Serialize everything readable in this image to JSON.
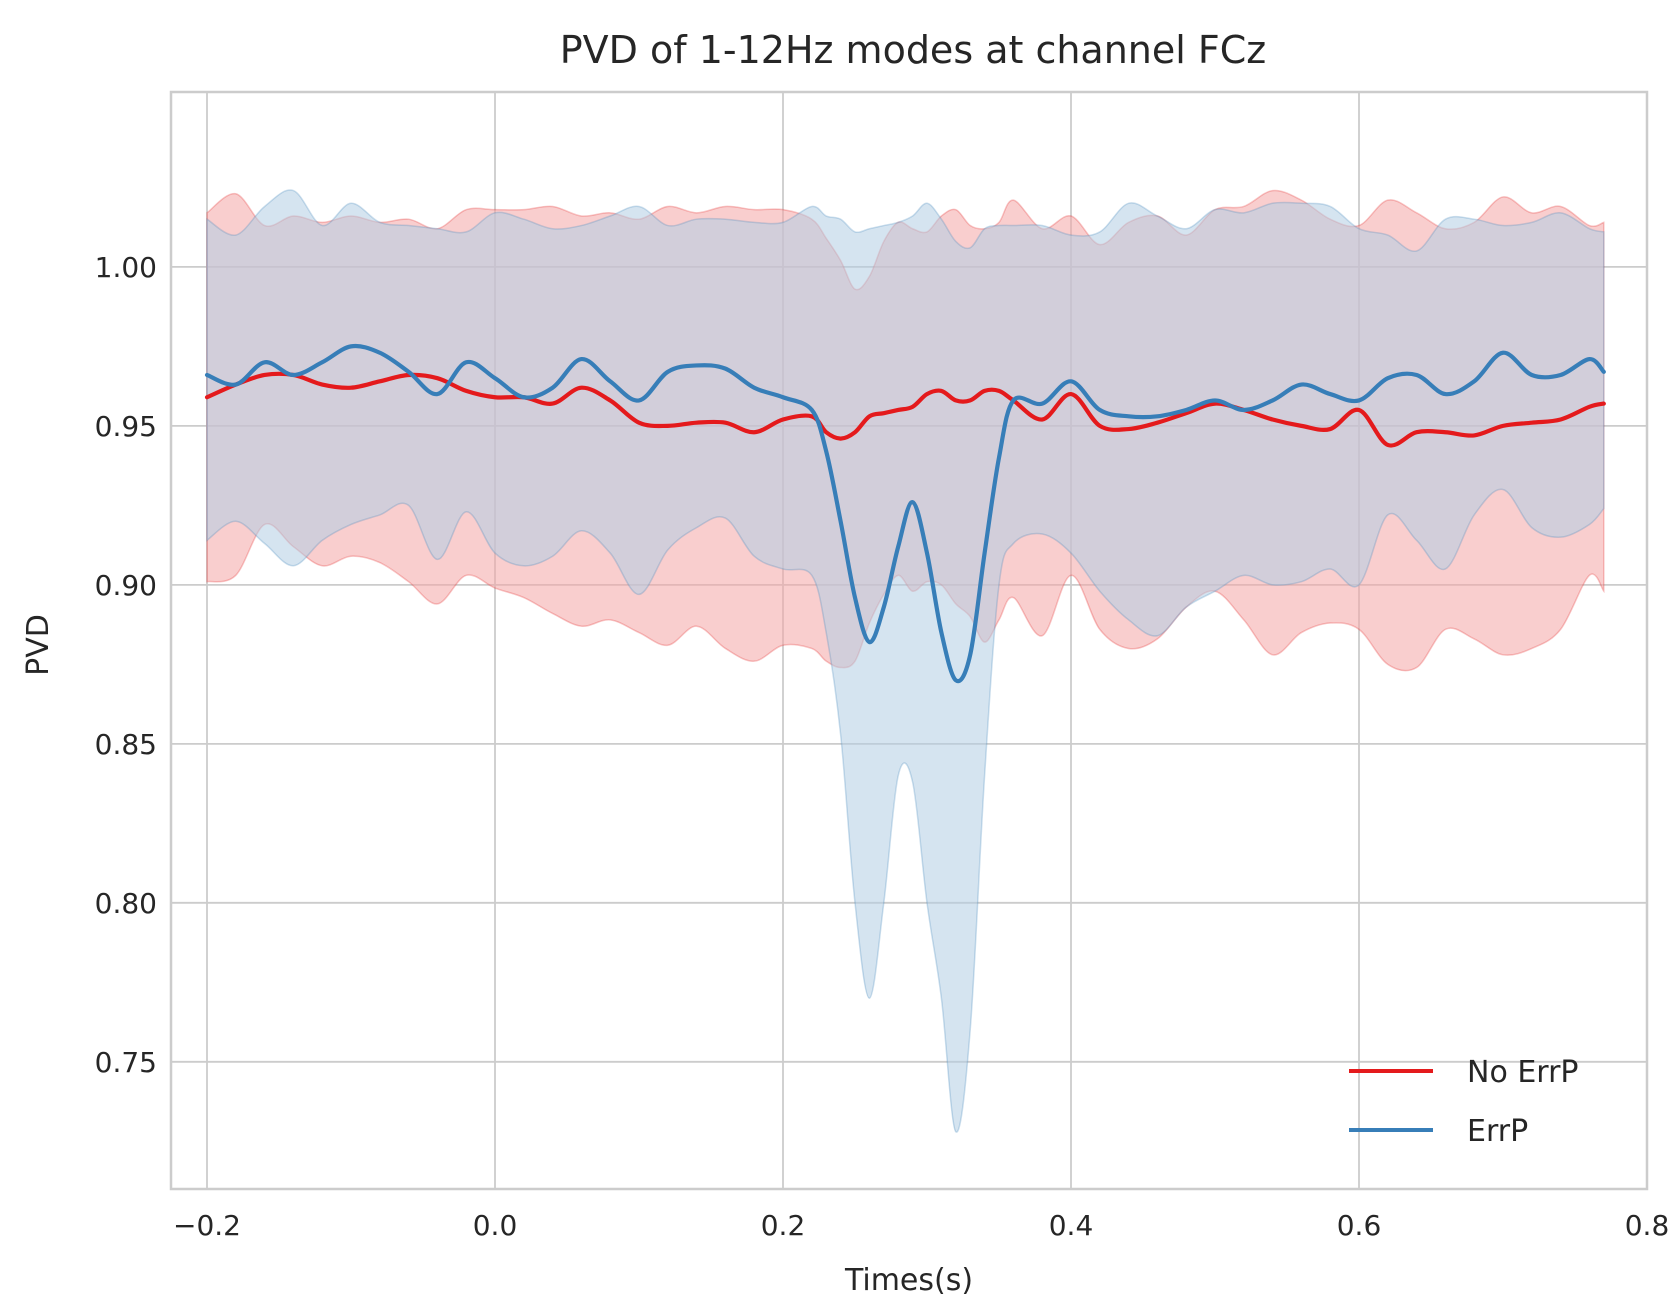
{
  "chart_data": {
    "type": "line",
    "title": "PVD of 1-12Hz modes at channel FCz",
    "xlabel": "Times(s)",
    "ylabel": "PVD",
    "xlim": [
      -0.225,
      0.8
    ],
    "ylim": [
      0.71,
      1.055
    ],
    "xticks": [
      -0.2,
      0.0,
      0.2,
      0.4,
      0.6,
      0.8
    ],
    "xtick_labels": [
      "−0.2",
      "0.0",
      "0.2",
      "0.4",
      "0.6",
      "0.8"
    ],
    "yticks": [
      0.75,
      0.8,
      0.85,
      0.9,
      0.95,
      1.0
    ],
    "ytick_labels": [
      "0.75",
      "0.80",
      "0.85",
      "0.90",
      "0.95",
      "1.00"
    ],
    "grid": true,
    "legend_position": "lower-right",
    "x": [
      -0.2,
      -0.18,
      -0.16,
      -0.14,
      -0.12,
      -0.1,
      -0.08,
      -0.06,
      -0.04,
      -0.02,
      0.0,
      0.02,
      0.04,
      0.06,
      0.08,
      0.1,
      0.12,
      0.14,
      0.16,
      0.18,
      0.2,
      0.22,
      0.23,
      0.24,
      0.25,
      0.26,
      0.27,
      0.28,
      0.29,
      0.3,
      0.31,
      0.32,
      0.33,
      0.34,
      0.35,
      0.36,
      0.38,
      0.4,
      0.42,
      0.44,
      0.46,
      0.48,
      0.5,
      0.52,
      0.54,
      0.56,
      0.58,
      0.6,
      0.62,
      0.64,
      0.66,
      0.68,
      0.7,
      0.72,
      0.74,
      0.76,
      0.77
    ],
    "series": [
      {
        "name": "No ErrP",
        "color": "#e41a1c",
        "band_color": "#f4a6a6",
        "mean": [
          0.959,
          0.963,
          0.966,
          0.966,
          0.963,
          0.962,
          0.964,
          0.966,
          0.965,
          0.961,
          0.959,
          0.959,
          0.957,
          0.962,
          0.958,
          0.951,
          0.95,
          0.951,
          0.951,
          0.948,
          0.952,
          0.953,
          0.948,
          0.946,
          0.948,
          0.953,
          0.954,
          0.955,
          0.956,
          0.96,
          0.961,
          0.958,
          0.958,
          0.961,
          0.961,
          0.958,
          0.952,
          0.96,
          0.95,
          0.949,
          0.951,
          0.954,
          0.957,
          0.955,
          0.952,
          0.95,
          0.949,
          0.955,
          0.944,
          0.948,
          0.948,
          0.947,
          0.95,
          0.951,
          0.952,
          0.956,
          0.957
        ],
        "upper": [
          1.017,
          1.023,
          1.013,
          1.016,
          1.014,
          1.016,
          1.014,
          1.015,
          1.012,
          1.018,
          1.018,
          1.018,
          1.019,
          1.016,
          1.017,
          1.015,
          1.019,
          1.017,
          1.019,
          1.018,
          1.018,
          1.015,
          1.009,
          1.002,
          0.993,
          0.997,
          1.008,
          1.014,
          1.012,
          1.011,
          1.016,
          1.018,
          1.013,
          1.012,
          1.014,
          1.021,
          1.012,
          1.016,
          1.007,
          1.014,
          1.016,
          1.01,
          1.018,
          1.019,
          1.024,
          1.021,
          1.015,
          1.013,
          1.021,
          1.017,
          1.012,
          1.014,
          1.022,
          1.017,
          1.019,
          1.013,
          1.014
        ],
        "lower": [
          0.901,
          0.903,
          0.919,
          0.912,
          0.906,
          0.909,
          0.907,
          0.901,
          0.894,
          0.903,
          0.899,
          0.896,
          0.891,
          0.887,
          0.889,
          0.885,
          0.881,
          0.887,
          0.88,
          0.876,
          0.881,
          0.88,
          0.876,
          0.874,
          0.876,
          0.888,
          0.897,
          0.903,
          0.898,
          0.901,
          0.9,
          0.894,
          0.89,
          0.882,
          0.889,
          0.896,
          0.884,
          0.903,
          0.886,
          0.88,
          0.883,
          0.893,
          0.898,
          0.889,
          0.878,
          0.885,
          0.888,
          0.886,
          0.875,
          0.874,
          0.886,
          0.883,
          0.878,
          0.88,
          0.886,
          0.903,
          0.898
        ]
      },
      {
        "name": "ErrP",
        "color": "#377eb8",
        "band_color": "#b3cde3",
        "mean": [
          0.966,
          0.963,
          0.97,
          0.966,
          0.97,
          0.975,
          0.973,
          0.967,
          0.96,
          0.97,
          0.965,
          0.959,
          0.962,
          0.971,
          0.964,
          0.958,
          0.967,
          0.969,
          0.968,
          0.962,
          0.959,
          0.955,
          0.942,
          0.92,
          0.896,
          0.882,
          0.893,
          0.912,
          0.926,
          0.91,
          0.885,
          0.87,
          0.878,
          0.91,
          0.94,
          0.958,
          0.957,
          0.964,
          0.955,
          0.953,
          0.953,
          0.955,
          0.958,
          0.955,
          0.958,
          0.963,
          0.96,
          0.958,
          0.965,
          0.966,
          0.96,
          0.964,
          0.973,
          0.966,
          0.966,
          0.971,
          0.967
        ],
        "upper": [
          1.015,
          1.01,
          1.019,
          1.024,
          1.013,
          1.02,
          1.014,
          1.013,
          1.012,
          1.011,
          1.017,
          1.015,
          1.012,
          1.013,
          1.016,
          1.019,
          1.013,
          1.015,
          1.015,
          1.014,
          1.014,
          1.019,
          1.016,
          1.015,
          1.011,
          1.012,
          1.013,
          1.014,
          1.016,
          1.02,
          1.015,
          1.008,
          1.006,
          1.012,
          1.013,
          1.013,
          1.013,
          1.01,
          1.011,
          1.02,
          1.016,
          1.012,
          1.018,
          1.017,
          1.02,
          1.02,
          1.019,
          1.012,
          1.01,
          1.005,
          1.015,
          1.015,
          1.013,
          1.014,
          1.017,
          1.012,
          1.011
        ],
        "lower": [
          0.914,
          0.92,
          0.913,
          0.906,
          0.914,
          0.919,
          0.922,
          0.925,
          0.908,
          0.923,
          0.91,
          0.906,
          0.909,
          0.917,
          0.91,
          0.897,
          0.911,
          0.918,
          0.921,
          0.909,
          0.905,
          0.903,
          0.885,
          0.853,
          0.8,
          0.77,
          0.8,
          0.84,
          0.838,
          0.8,
          0.77,
          0.728,
          0.76,
          0.84,
          0.9,
          0.913,
          0.916,
          0.91,
          0.898,
          0.889,
          0.884,
          0.893,
          0.898,
          0.903,
          0.9,
          0.901,
          0.905,
          0.9,
          0.922,
          0.914,
          0.905,
          0.922,
          0.93,
          0.918,
          0.915,
          0.919,
          0.924
        ]
      }
    ]
  }
}
